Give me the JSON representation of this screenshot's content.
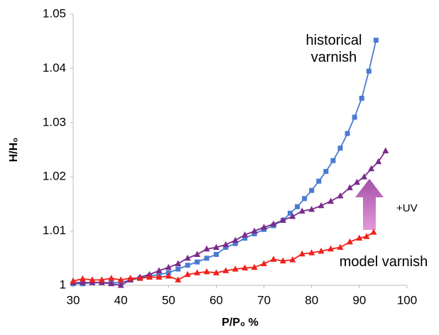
{
  "chart_data": {
    "type": "line",
    "xlabel": "P/P₀ %",
    "ylabel": "H/H₀",
    "xlim": [
      30,
      100
    ],
    "xticks": [
      30,
      40,
      50,
      60,
      70,
      80,
      90,
      100
    ],
    "ylim": [
      1,
      1.05
    ],
    "yticks": [
      1,
      1.01,
      1.02,
      1.03,
      1.04,
      1.05
    ],
    "grid": false,
    "annotation": "+UV",
    "series": [
      {
        "name": "historical varnish",
        "color": "#4a7bd0",
        "marker": "square",
        "x": [
          30,
          32,
          34,
          36,
          38,
          40,
          42,
          44,
          46,
          48,
          50,
          52,
          54,
          56,
          58,
          60,
          62,
          64,
          66,
          68,
          70,
          72,
          74,
          75.5,
          77,
          78.5,
          80,
          81.5,
          83,
          84.5,
          86,
          87.5,
          89,
          90.5,
          92,
          93.5
        ],
        "values": [
          1.0003,
          1.0003,
          1.0005,
          1.0005,
          1.0005,
          1.0005,
          1.001,
          1.0013,
          1.0017,
          1.002,
          1.0023,
          1.003,
          1.0037,
          1.0043,
          1.005,
          1.0057,
          1.007,
          1.0077,
          1.0087,
          1.0095,
          1.0103,
          1.011,
          1.012,
          1.0133,
          1.0145,
          1.016,
          1.0175,
          1.0192,
          1.021,
          1.023,
          1.0253,
          1.028,
          1.031,
          1.0345,
          1.0395,
          1.0452
        ]
      },
      {
        "color": "#7a2a8c",
        "marker": "triangle",
        "x": [
          30,
          32,
          34,
          36,
          38,
          40,
          42,
          44,
          46,
          48,
          50,
          52,
          54,
          56,
          58,
          60,
          62,
          64,
          66,
          68,
          70,
          72,
          74,
          76,
          78,
          80,
          82,
          84,
          86,
          88,
          89.5,
          91,
          92.5,
          94,
          95.5
        ],
        "values": [
          1.0005,
          1.0005,
          1.0005,
          1.0005,
          1.0003,
          1.0,
          1.001,
          1.0015,
          1.002,
          1.0027,
          1.0033,
          1.004,
          1.005,
          1.0057,
          1.0067,
          1.007,
          1.0075,
          1.0083,
          1.0093,
          1.01,
          1.0107,
          1.0113,
          1.012,
          1.0127,
          1.0137,
          1.014,
          1.0147,
          1.0155,
          1.0165,
          1.018,
          1.019,
          1.02,
          1.0215,
          1.0228,
          1.0248
        ]
      },
      {
        "name": "model varnish",
        "color": "#f0211c",
        "marker": "triangle",
        "x": [
          30,
          32,
          34,
          36,
          38,
          40,
          42,
          44,
          46,
          48,
          50,
          52,
          54,
          56,
          58,
          60,
          62,
          64,
          66,
          68,
          70,
          72,
          74,
          76,
          78,
          80,
          82,
          84,
          86,
          88,
          90,
          91.5,
          93
        ],
        "values": [
          1.0008,
          1.0012,
          1.001,
          1.001,
          1.0013,
          1.001,
          1.0013,
          1.0013,
          1.0015,
          1.0015,
          1.0017,
          1.001,
          1.002,
          1.0023,
          1.0025,
          1.0023,
          1.0027,
          1.003,
          1.0032,
          1.0033,
          1.004,
          1.0048,
          1.0045,
          1.0047,
          1.0058,
          1.006,
          1.0063,
          1.0067,
          1.007,
          1.008,
          1.0087,
          1.009,
          1.0098
        ]
      }
    ]
  }
}
